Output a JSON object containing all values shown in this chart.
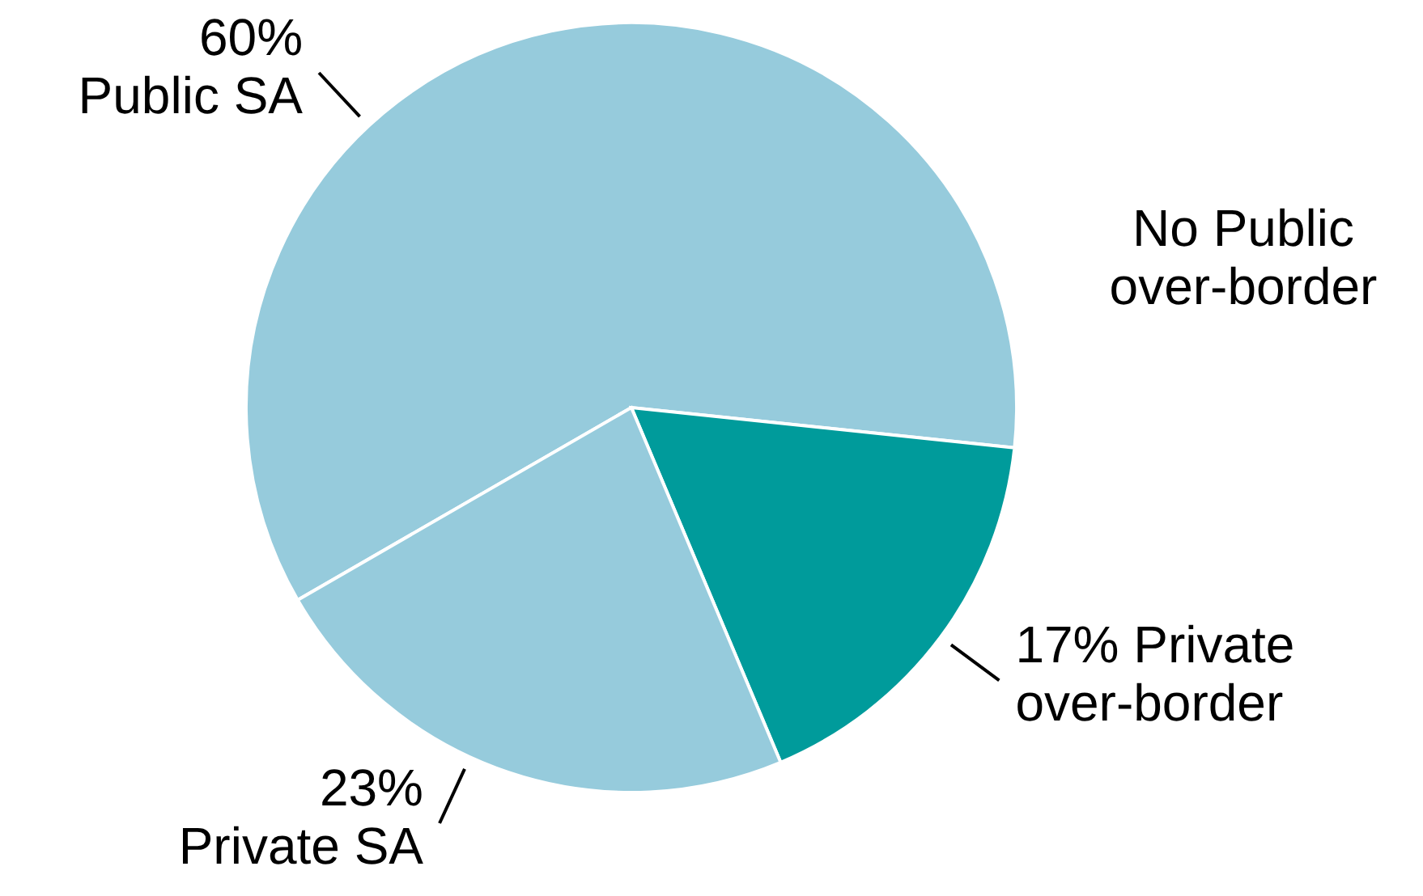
{
  "chart_data": {
    "type": "pie",
    "categories": [
      "Public SA",
      "Private over-border",
      "Private SA"
    ],
    "values": [
      60,
      17,
      23
    ],
    "value_labels": [
      "60%",
      "17%",
      "23%"
    ],
    "colors": [
      "#96cbdc",
      "#009b9b",
      "#96cbdc"
    ],
    "annotations": [
      "No Public over-border"
    ]
  }
}
